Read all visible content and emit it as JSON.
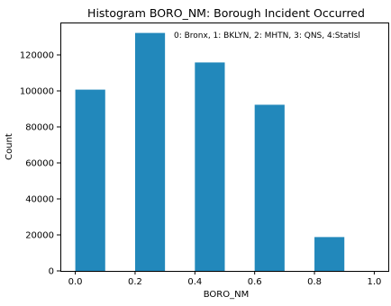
{
  "chart_data": {
    "type": "bar",
    "title": "Histogram BORO_NM: Borough Incident Occurred",
    "xlabel": "BORO_NM",
    "ylabel": "Count",
    "annotation": "0: Bronx, 1: BKLYN, 2: MHTN, 3: QNS, 4:StatIsl",
    "xlim": [
      -0.05,
      1.05
    ],
    "ylim": [
      0,
      138000
    ],
    "x_ticks": [
      {
        "value": 0.0,
        "label": "0.0"
      },
      {
        "value": 0.2,
        "label": "0.2"
      },
      {
        "value": 0.4,
        "label": "0.4"
      },
      {
        "value": 0.6,
        "label": "0.6"
      },
      {
        "value": 0.8,
        "label": "0.8"
      },
      {
        "value": 1.0,
        "label": "1.0"
      }
    ],
    "y_ticks": [
      {
        "value": 0,
        "label": "0"
      },
      {
        "value": 20000,
        "label": "20000"
      },
      {
        "value": 40000,
        "label": "40000"
      },
      {
        "value": 60000,
        "label": "60000"
      },
      {
        "value": 80000,
        "label": "80000"
      },
      {
        "value": 100000,
        "label": "100000"
      },
      {
        "value": 120000,
        "label": "120000"
      }
    ],
    "bars": [
      {
        "x0": 0.0,
        "x1": 0.1,
        "value": 100700
      },
      {
        "x0": 0.2,
        "x1": 0.3,
        "value": 132200
      },
      {
        "x0": 0.4,
        "x1": 0.5,
        "value": 115800
      },
      {
        "x0": 0.6,
        "x1": 0.7,
        "value": 92300
      },
      {
        "x0": 0.8,
        "x1": 0.9,
        "value": 18800
      }
    ],
    "bar_color": "#2288bb",
    "grid": false
  }
}
